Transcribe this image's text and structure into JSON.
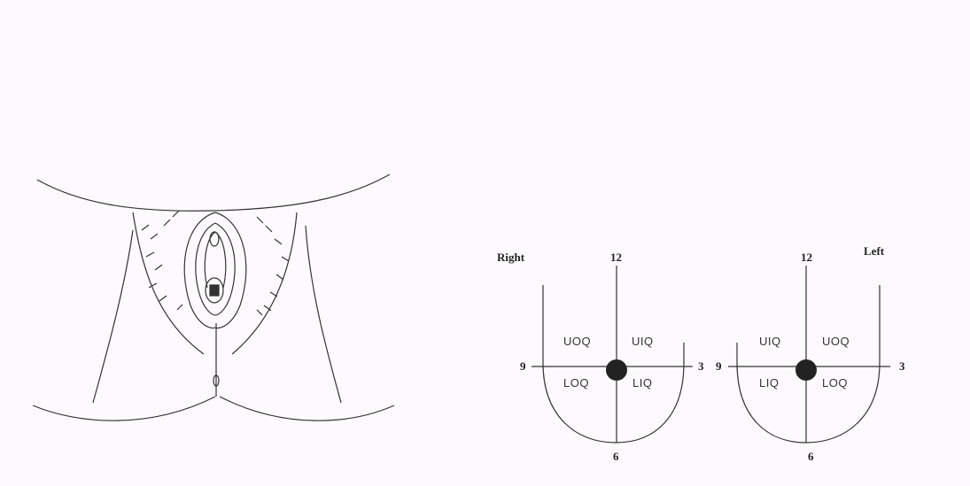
{
  "diagram": {
    "left_chart": {
      "side_label": "Right",
      "clock_top": "12",
      "clock_right": "3",
      "clock_bottom": "6",
      "clock_left": "9",
      "quadrants": {
        "upper_left": "UOQ",
        "upper_right": "UIQ",
        "lower_left": "LOQ",
        "lower_right": "LIQ"
      }
    },
    "right_chart": {
      "side_label": "Left",
      "clock_top": "12",
      "clock_right": "3",
      "clock_bottom": "6",
      "clock_left": "9",
      "quadrants": {
        "upper_left": "UIQ",
        "upper_right": "UOQ",
        "lower_left": "LIQ",
        "lower_right": "LOQ"
      }
    },
    "colors": {
      "ink": "#333333",
      "dot": "#222222",
      "background": "#fdfafd"
    }
  }
}
